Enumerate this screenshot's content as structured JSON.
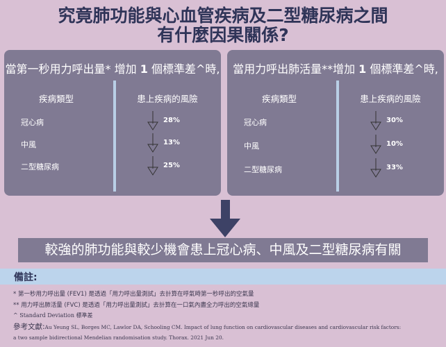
{
  "title": {
    "line1": "究竟肺功能與心血管疾病及二型糖尿病之間",
    "line2": "有什麼因果關係?"
  },
  "panels": [
    {
      "head_pre": "當第一秒用力呼出量* 增加 ",
      "head_bold": "1",
      "head_post": " 個標準差^時,",
      "col_disease": "疾病類型",
      "col_risk": "患上疾病的風險",
      "rows": [
        {
          "disease": "冠心病",
          "risk": "28%",
          "direction": "down"
        },
        {
          "disease": "中風",
          "risk": "13%",
          "direction": "down"
        },
        {
          "disease": "二型糖尿病",
          "risk": "25%",
          "direction": "down"
        }
      ]
    },
    {
      "head_pre": "當用力呼出肺活量**增加 ",
      "head_bold": "1",
      "head_post": " 個標準差^時,",
      "col_disease": "疾病類型",
      "col_risk": "患上疾病的風險",
      "rows": [
        {
          "disease": "冠心病",
          "risk": "30%",
          "direction": "down"
        },
        {
          "disease": "中風",
          "risk": "10%",
          "direction": "down"
        },
        {
          "disease": "二型糖尿病",
          "risk": "33%",
          "direction": "down"
        }
      ]
    }
  ],
  "conclusion": "較強的肺功能與較少機會患上冠心病、中風及二型糖尿病有關",
  "notes": {
    "heading": "備註:",
    "fev1": "* 第一秒用力呼出量 (FEV1) 是透過「用力呼出量測試」去計算在呼氣時第一秒呼出的空氣量",
    "fvc": "** 用力呼出肺活量 (FVC) 是透過「用力呼出量測試」去計算在一口氣內盡全力呼出的空氣總量",
    "sd": "^ Standard Deviation 標準差",
    "ref_label": "參考文獻:",
    "ref_line1": "Au Yeung SL, Borges MC, Lawlor DA, Schooling CM. Impact of lung function on cardiovascular diseases and cardiovascular risk factors:",
    "ref_line2": "a two sample bidirectional Mendelian randomisation study. Thorax. 2021 Jun 20."
  },
  "colors": {
    "background": "#d9c0d4",
    "panel": "#807a93",
    "title": "#2f3458",
    "note_bar": "#bcd4ec"
  }
}
